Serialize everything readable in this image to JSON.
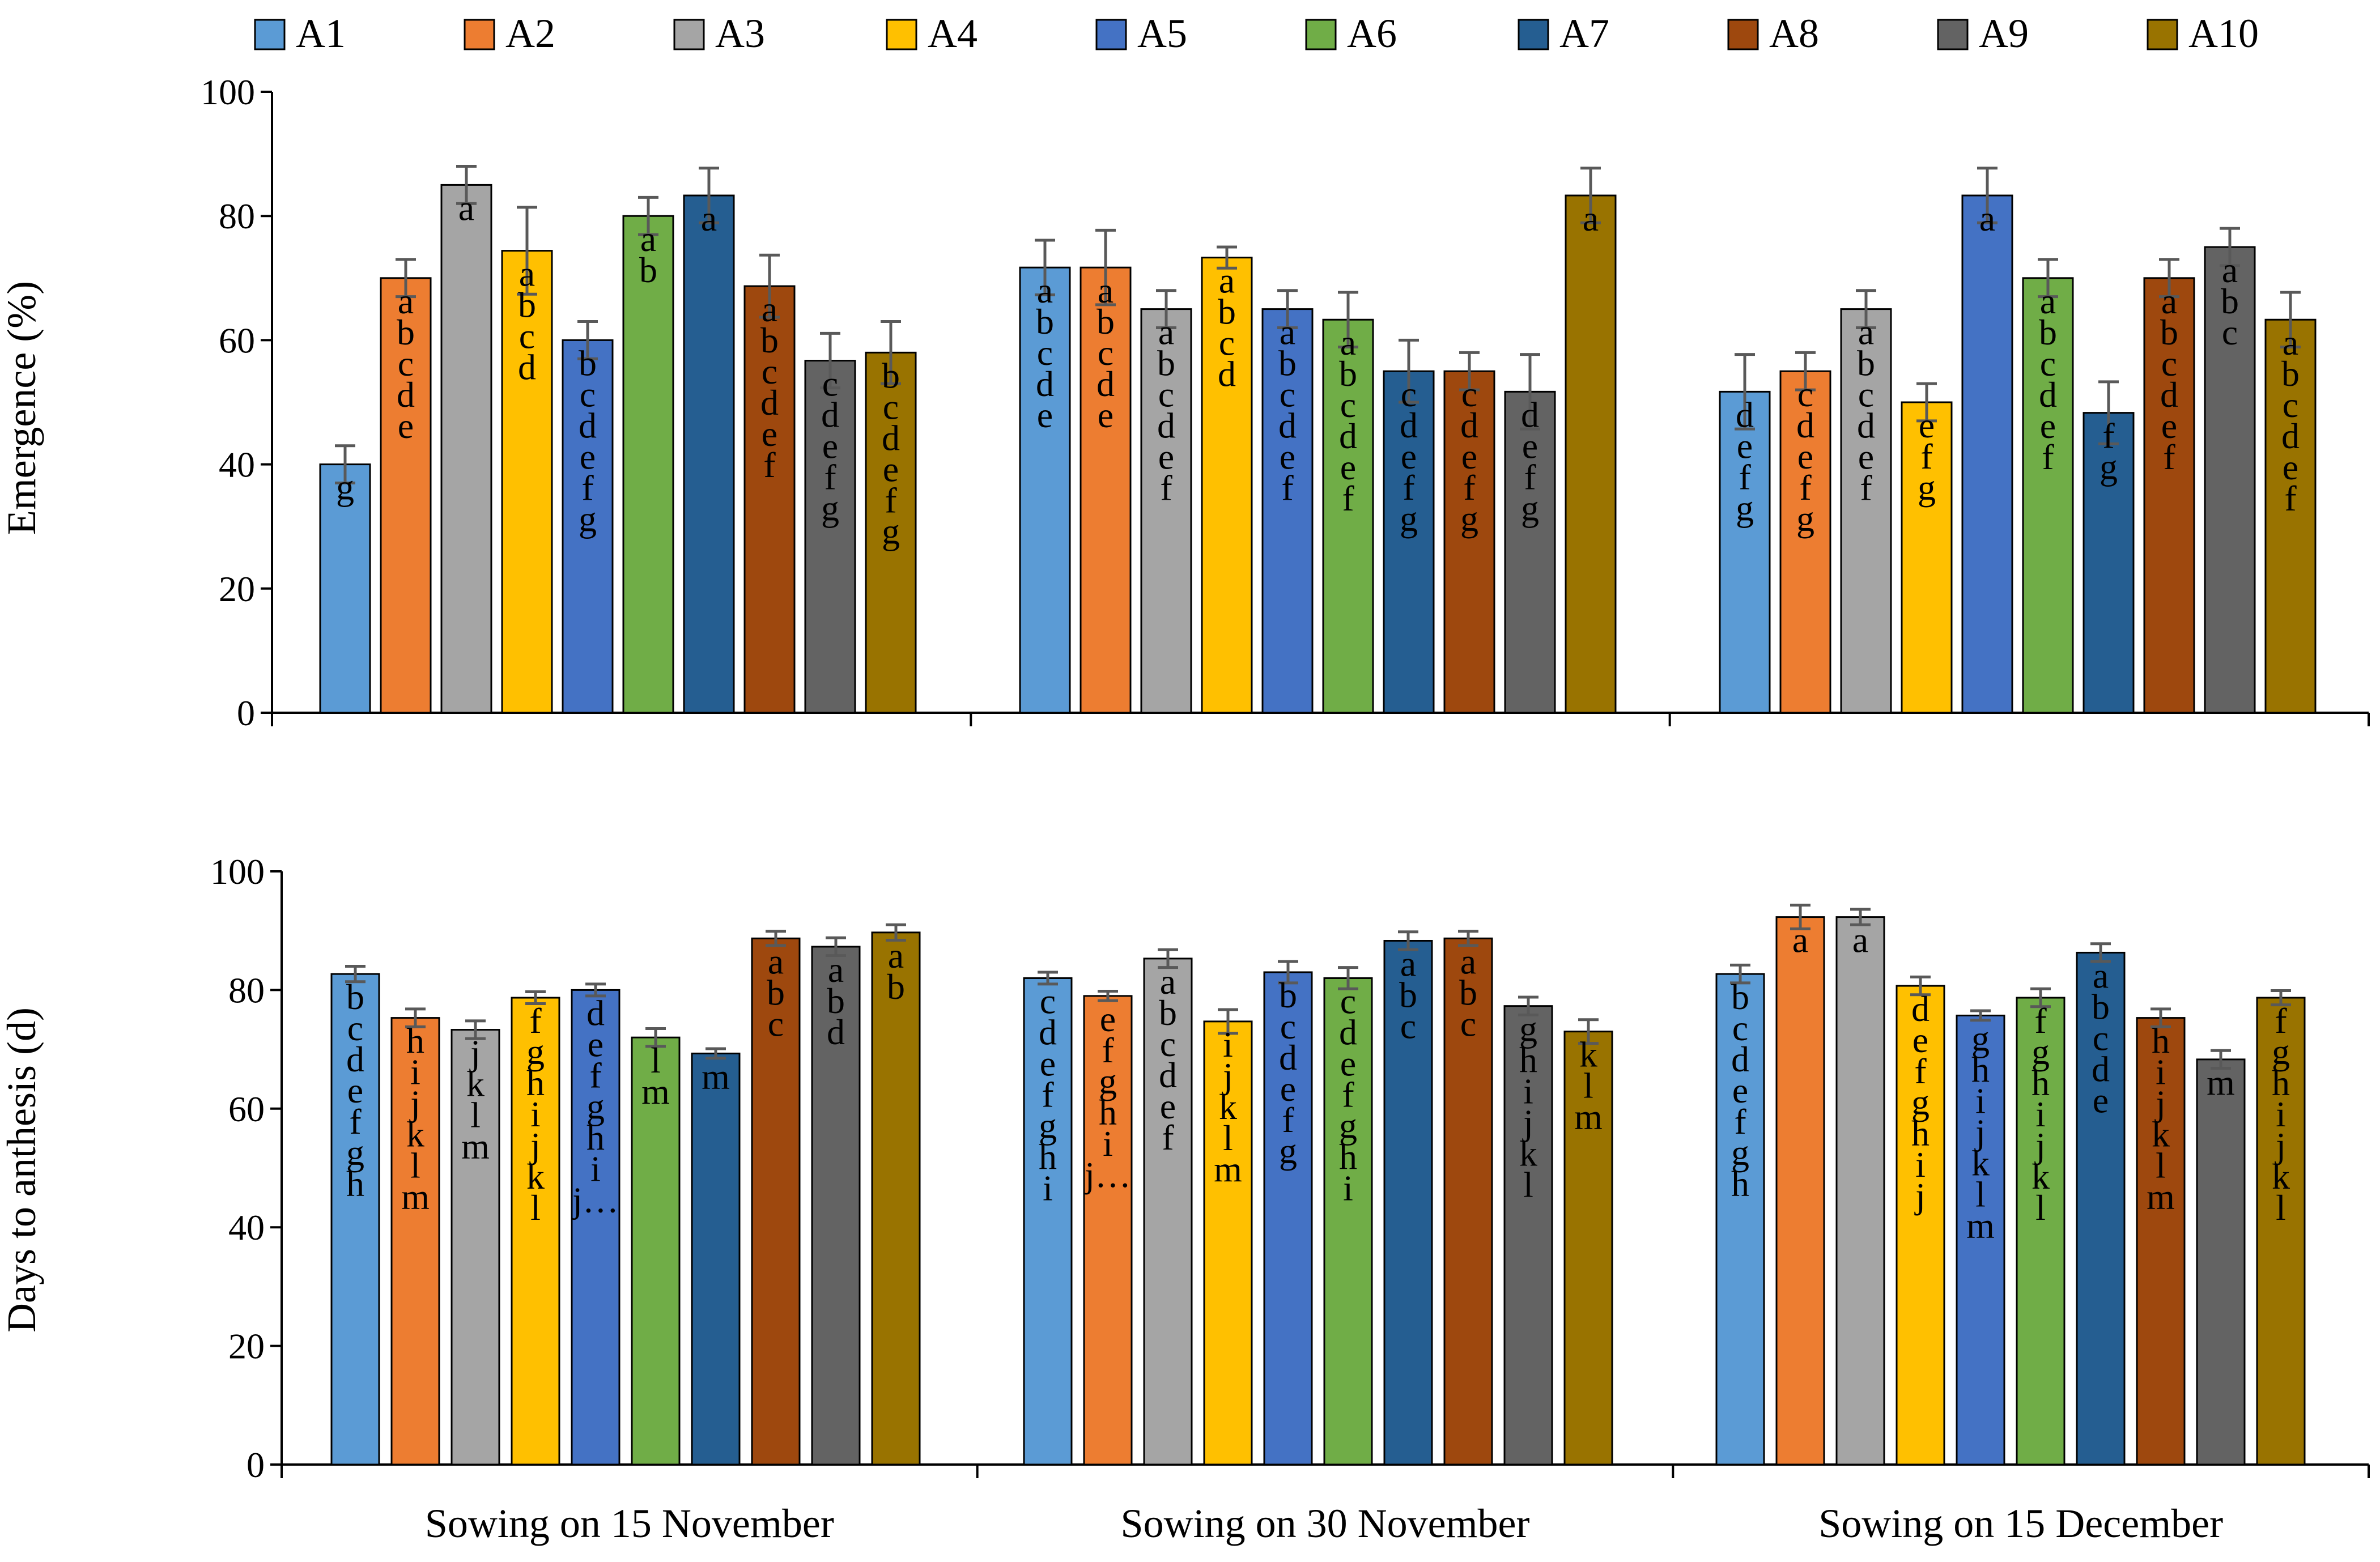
{
  "colors": {
    "A1": "#5b9bd5",
    "A2": "#ed7d31",
    "A3": "#a5a5a5",
    "A4": "#ffc000",
    "A5": "#4472c4",
    "A6": "#70ad47",
    "A7": "#255e91",
    "A8": "#9e480e",
    "A9": "#636363",
    "A10": "#997300",
    "errorbar": "#595959",
    "axis": "#000000"
  },
  "legend": [
    "A1",
    "A2",
    "A3",
    "A4",
    "A5",
    "A6",
    "A7",
    "A8",
    "A9",
    "A10"
  ],
  "chart_data": [
    {
      "type": "bar",
      "title": "",
      "ylabel": "Emergence (%)",
      "xlabel": "",
      "ylim": [
        0,
        100
      ],
      "yticks": [
        0,
        20,
        40,
        60,
        80,
        100
      ],
      "categories": [
        "Sowing on 15 November",
        "Sowing on 30 November",
        "Sowing on 15 December"
      ],
      "show_category_labels": false,
      "series": [
        {
          "name": "A1",
          "values": [
            40,
            71.7,
            51.7
          ],
          "errors": [
            3,
            4.4,
            6
          ],
          "letters": [
            "g",
            "abcde",
            "defg"
          ]
        },
        {
          "name": "A2",
          "values": [
            70,
            71.7,
            55
          ],
          "errors": [
            3,
            6,
            3
          ],
          "letters": [
            "abcde",
            "abcde",
            "cdefg"
          ]
        },
        {
          "name": "A3",
          "values": [
            85,
            65,
            65
          ],
          "errors": [
            3,
            3,
            3
          ],
          "letters": [
            "a",
            "abcdef",
            "abcdef"
          ]
        },
        {
          "name": "A4",
          "values": [
            74.4,
            73.3,
            50
          ],
          "errors": [
            7,
            1.7,
            3
          ],
          "letters": [
            "abcd",
            "abcd",
            "efg"
          ]
        },
        {
          "name": "A5",
          "values": [
            60,
            65,
            83.3
          ],
          "errors": [
            3,
            3,
            4.4
          ],
          "letters": [
            "bcdefg",
            "abcdef",
            "a"
          ]
        },
        {
          "name": "A6",
          "values": [
            80,
            63.3,
            70
          ],
          "errors": [
            3,
            4.4,
            3
          ],
          "letters": [
            "ab",
            "abcdef",
            "abcdef"
          ]
        },
        {
          "name": "A7",
          "values": [
            83.3,
            55,
            48.3
          ],
          "errors": [
            4.4,
            5,
            5
          ],
          "letters": [
            "a",
            "cdefg",
            "fg"
          ]
        },
        {
          "name": "A8",
          "values": [
            68.7,
            55,
            70
          ],
          "errors": [
            5,
            3,
            3
          ],
          "letters": [
            "abcdef",
            "cdefg",
            "abcdef"
          ]
        },
        {
          "name": "A9",
          "values": [
            56.7,
            51.7,
            75
          ],
          "errors": [
            4.4,
            6,
            3
          ],
          "letters": [
            "cdefg",
            "defg",
            "abc"
          ]
        },
        {
          "name": "A10",
          "values": [
            58,
            83.3,
            63.3
          ],
          "errors": [
            5,
            4.4,
            4.4
          ],
          "letters": [
            "bcdefg",
            "a",
            "abcdef"
          ]
        }
      ]
    },
    {
      "type": "bar",
      "title": "",
      "ylabel": "Days to anthesis (d)",
      "xlabel": "",
      "ylim": [
        0,
        100
      ],
      "yticks": [
        0,
        20,
        40,
        60,
        80,
        100
      ],
      "categories": [
        "Sowing on 15 November",
        "Sowing on 30 November",
        "Sowing on 15 December"
      ],
      "show_category_labels": true,
      "series": [
        {
          "name": "A1",
          "values": [
            82.7,
            82,
            82.7
          ],
          "errors": [
            1.3,
            1,
            1.5
          ],
          "letters": [
            "bcdefgh",
            "cdefghi",
            "bcdefgh"
          ]
        },
        {
          "name": "A2",
          "values": [
            75.3,
            79,
            92.3
          ],
          "errors": [
            1.5,
            0.8,
            2
          ],
          "letters": [
            "hijklm",
            "efghij…",
            "a"
          ]
        },
        {
          "name": "A3",
          "values": [
            73.3,
            85.3,
            92.3
          ],
          "errors": [
            1.5,
            1.5,
            1.3
          ],
          "letters": [
            "jklm",
            "abcdef",
            "a"
          ]
        },
        {
          "name": "A4",
          "values": [
            78.7,
            74.7,
            80.7
          ],
          "errors": [
            1,
            2,
            1.5
          ],
          "letters": [
            "fghijkl",
            "ijklm",
            "defghij"
          ]
        },
        {
          "name": "A5",
          "values": [
            80,
            83,
            75.7
          ],
          "errors": [
            1,
            1.8,
            0.8
          ],
          "letters": [
            "defghij…",
            "bcdefg",
            "ghijklm"
          ]
        },
        {
          "name": "A6",
          "values": [
            72,
            82,
            78.7
          ],
          "errors": [
            1.5,
            1.8,
            1.5
          ],
          "letters": [
            "lm",
            "cdefghi",
            "fghijkl"
          ]
        },
        {
          "name": "A7",
          "values": [
            69.3,
            88.3,
            86.3
          ],
          "errors": [
            0.8,
            1.5,
            1.5
          ],
          "letters": [
            "m",
            "abc",
            "abcde"
          ]
        },
        {
          "name": "A8",
          "values": [
            88.7,
            88.7,
            75.3
          ],
          "errors": [
            1.2,
            1.2,
            1.5
          ],
          "letters": [
            "abc",
            "abc",
            "hijklm"
          ]
        },
        {
          "name": "A9",
          "values": [
            87.3,
            77.3,
            68.3
          ],
          "errors": [
            1.5,
            1.5,
            1.5
          ],
          "letters": [
            "abd",
            "ghijkl",
            "m"
          ]
        },
        {
          "name": "A10",
          "values": [
            89.7,
            73,
            78.7
          ],
          "errors": [
            1.3,
            2,
            1.2
          ],
          "letters": [
            "ab",
            "klm",
            "fghijkl"
          ]
        }
      ]
    }
  ]
}
